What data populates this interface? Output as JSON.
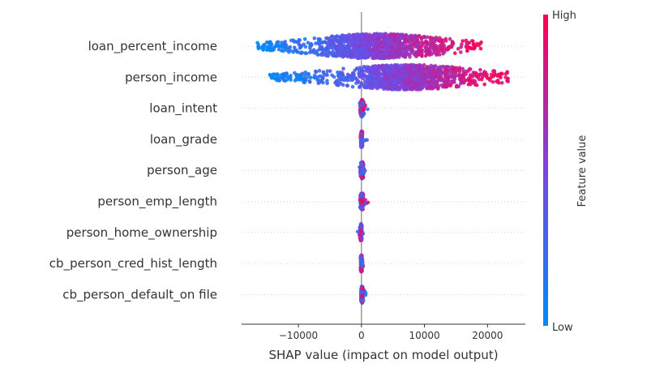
{
  "chart_data": {
    "type": "scatter",
    "subtype": "shap-beeswarm",
    "xlabel": "SHAP value (impact on model output)",
    "xlim": [
      -19000,
      26000
    ],
    "xticks": [
      {
        "value": -10000,
        "label": "−10000"
      },
      {
        "value": 0,
        "label": "0"
      },
      {
        "value": 10000,
        "label": "10000"
      },
      {
        "value": 20000,
        "label": "20000"
      }
    ],
    "features": [
      {
        "name": "loan_percent_income",
        "min": -16500,
        "max": 19000,
        "peak_min": -9000,
        "peak_max": 14000
      },
      {
        "name": "person_income",
        "min": -14500,
        "max": 23500,
        "peak_min": -5000,
        "peak_max": 19500
      },
      {
        "name": "loan_intent",
        "min": -500,
        "max": 1300,
        "peak_min": -300,
        "peak_max": 500
      },
      {
        "name": "loan_grade",
        "min": -300,
        "max": 900,
        "peak_min": -200,
        "peak_max": 300
      },
      {
        "name": "person_age",
        "min": -400,
        "max": 1600,
        "peak_min": -300,
        "peak_max": 500
      },
      {
        "name": "person_emp_length",
        "min": -400,
        "max": 1100,
        "peak_min": -300,
        "peak_max": 500
      },
      {
        "name": "person_home_ownership",
        "min": -700,
        "max": 300,
        "peak_min": -300,
        "peak_max": 200
      },
      {
        "name": "cb_person_cred_hist_length",
        "min": -300,
        "max": 300,
        "peak_min": -200,
        "peak_max": 200
      },
      {
        "name": "cb_person_default_on file",
        "min": -300,
        "max": 800,
        "peak_min": -200,
        "peak_max": 400
      }
    ],
    "colorbar": {
      "label": "Feature value",
      "high_label": "High",
      "low_label": "Low",
      "low_color": "#008afb",
      "high_color": "#ff0052"
    },
    "grid": false,
    "legend": "colorbar-right"
  }
}
